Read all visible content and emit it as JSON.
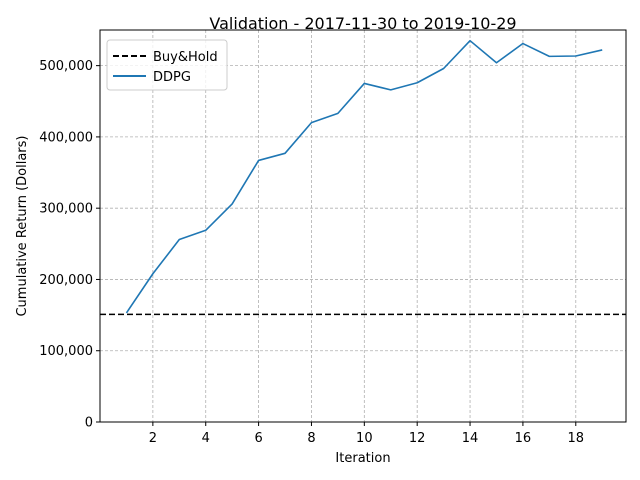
{
  "chart_data": {
    "type": "line",
    "title": "Validation - 2017-11-30 to 2019-10-29",
    "xlabel": "Iteration",
    "ylabel": "Cumulative Return (Dollars)",
    "xlim": [
      0,
      19.9
    ],
    "ylim": [
      0,
      550000
    ],
    "x_ticks": [
      2,
      4,
      6,
      8,
      10,
      12,
      14,
      16,
      18
    ],
    "x_tick_labels": [
      "2",
      "4",
      "6",
      "8",
      "10",
      "12",
      "14",
      "16",
      "18"
    ],
    "y_ticks": [
      0,
      100000,
      200000,
      300000,
      400000,
      500000
    ],
    "y_tick_labels": [
      "0",
      "100,000",
      "200,000",
      "300,000",
      "400,000",
      "500,000"
    ],
    "grid": true,
    "legend_position": "top-left",
    "series": [
      {
        "name": "Buy&Hold",
        "style": "dashed",
        "color": "#000000",
        "x": [
          0,
          19.9
        ],
        "values": [
          151000,
          151000
        ]
      },
      {
        "name": "DDPG",
        "style": "solid",
        "color": "#1f77b4",
        "x": [
          1,
          2,
          3,
          4,
          5,
          6,
          7,
          8,
          9,
          10,
          11,
          12,
          13,
          14,
          15,
          16,
          17,
          18,
          19
        ],
        "values": [
          153000,
          208000,
          256000,
          269000,
          306000,
          367000,
          377000,
          420000,
          433000,
          475000,
          466000,
          476000,
          496000,
          535000,
          504000,
          531000,
          513000,
          513500,
          522000
        ]
      }
    ]
  }
}
